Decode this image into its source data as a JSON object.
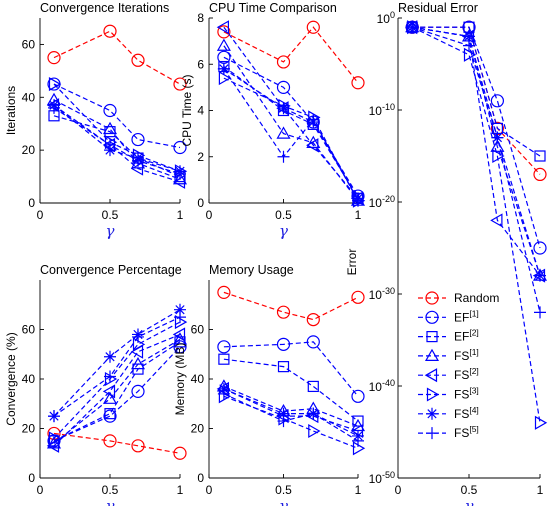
{
  "figure": {
    "gamma_symbol": "γ",
    "colors": {
      "random": "#ff0000",
      "methods": "#0000ff",
      "axis": "#000000"
    }
  },
  "legend": {
    "entries": [
      {
        "base": "Random",
        "sup": "",
        "marker": "circle",
        "color": "#ff0000"
      },
      {
        "base": "EF",
        "sup": "[1]",
        "marker": "circle",
        "color": "#0000ff"
      },
      {
        "base": "EF",
        "sup": "[2]",
        "marker": "square",
        "color": "#0000ff"
      },
      {
        "base": "FS",
        "sup": "[1]",
        "marker": "triangle-up",
        "color": "#0000ff"
      },
      {
        "base": "FS",
        "sup": "[2]",
        "marker": "triangle-left",
        "color": "#0000ff"
      },
      {
        "base": "FS",
        "sup": "[3]",
        "marker": "triangle-right",
        "color": "#0000ff"
      },
      {
        "base": "FS",
        "sup": "[4]",
        "marker": "asterisk",
        "color": "#0000ff"
      },
      {
        "base": "FS",
        "sup": "[5]",
        "marker": "plus",
        "color": "#0000ff"
      }
    ]
  },
  "chart_data": [
    {
      "type": "line",
      "title": "Convergence Iterations",
      "xlabel": "γ",
      "ylabel": "Iterations",
      "xlim": [
        0,
        1
      ],
      "ylim": [
        0,
        70
      ],
      "grid": false,
      "xticks": [
        "0",
        "0.5",
        "1"
      ],
      "yticks": [
        "0",
        "20",
        "40",
        "60"
      ],
      "x": [
        0.1,
        0.5,
        0.7,
        1.0
      ],
      "series": [
        {
          "name": "Random",
          "values": [
            55,
            65,
            54,
            45
          ]
        },
        {
          "name": "EF[1]",
          "values": [
            45,
            35,
            24,
            21
          ]
        },
        {
          "name": "EF[2]",
          "values": [
            33,
            27,
            17,
            10
          ]
        },
        {
          "name": "FS[1]",
          "values": [
            39,
            28,
            15,
            9
          ]
        },
        {
          "name": "FS[2]",
          "values": [
            37,
            22,
            13,
            8
          ]
        },
        {
          "name": "FS[3]",
          "values": [
            45,
            23,
            18,
            12
          ]
        },
        {
          "name": "FS[4]",
          "values": [
            37,
            20,
            17,
            12
          ]
        },
        {
          "name": "FS[5]",
          "values": [
            36,
            22,
            16,
            11
          ]
        }
      ]
    },
    {
      "type": "line",
      "title": "CPU Time Comparison",
      "xlabel": "γ",
      "ylabel": "CPU Time (s)",
      "xlim": [
        0,
        1
      ],
      "ylim": [
        0,
        8
      ],
      "grid": false,
      "xticks": [
        "0",
        "0.5",
        "1"
      ],
      "yticks": [
        "0",
        "2",
        "4",
        "6",
        "8"
      ],
      "x": [
        0.1,
        0.5,
        0.7,
        1.0
      ],
      "series": [
        {
          "name": "Random",
          "values": [
            7.4,
            6.1,
            7.6,
            5.2
          ]
        },
        {
          "name": "EF[1]",
          "values": [
            6.3,
            5.0,
            3.5,
            0.3
          ]
        },
        {
          "name": "EF[2]",
          "values": [
            5.9,
            4.0,
            3.4,
            0.2
          ]
        },
        {
          "name": "FS[1]",
          "values": [
            6.8,
            3.0,
            2.6,
            0.1
          ]
        },
        {
          "name": "FS[2]",
          "values": [
            7.6,
            4.1,
            2.5,
            0.2
          ]
        },
        {
          "name": "FS[3]",
          "values": [
            5.4,
            4.2,
            3.7,
            0.1
          ]
        },
        {
          "name": "FS[4]",
          "values": [
            5.8,
            4.1,
            3.5,
            0.2
          ]
        },
        {
          "name": "FS[5]",
          "values": [
            5.8,
            2.0,
            3.6,
            0.1
          ]
        }
      ]
    },
    {
      "type": "line",
      "title": "Residual Error",
      "xlabel": "γ",
      "ylabel": "Error",
      "xlim": [
        0,
        1
      ],
      "ylim": [
        -50,
        0
      ],
      "yscale": "log",
      "grid": false,
      "xticks": [
        "0",
        "0.5",
        "1"
      ],
      "yticks": [
        "10^0",
        "10^-10",
        "10^-20",
        "10^-30",
        "10^-40",
        "10^-50"
      ],
      "x": [
        0.1,
        0.5,
        0.7,
        1.0
      ],
      "series": [
        {
          "name": "Random",
          "values": [
            0.1,
            0.1,
            1e-12,
            1e-17
          ]
        },
        {
          "name": "EF[1]",
          "values": [
            0.1,
            0.1,
            1e-09,
            1e-25
          ]
        },
        {
          "name": "EF[2]",
          "values": [
            0.1,
            0.1,
            1e-12,
            1e-15
          ]
        },
        {
          "name": "FS[1]",
          "values": [
            0.1,
            0.01,
            1e-14,
            1e-28
          ]
        },
        {
          "name": "FS[2]",
          "values": [
            0.1,
            0.01,
            1e-22,
            1e-28
          ]
        },
        {
          "name": "FS[3]",
          "values": [
            0.1,
            0.0001,
            1e-15,
            1e-44
          ]
        },
        {
          "name": "FS[4]",
          "values": [
            0.1,
            0.01,
            1e-13,
            1e-28
          ]
        },
        {
          "name": "FS[5]",
          "values": [
            0.1,
            0.001,
            1e-13,
            1e-32
          ]
        }
      ]
    },
    {
      "type": "line",
      "title": "Convergence Percentage",
      "xlabel": "γ",
      "ylabel": "Convergence (%)",
      "xlim": [
        0,
        1
      ],
      "ylim": [
        0,
        80
      ],
      "grid": false,
      "xticks": [
        "0",
        "0.5",
        "1"
      ],
      "yticks": [
        "0",
        "20",
        "40",
        "60"
      ],
      "x": [
        0.1,
        0.5,
        0.7,
        1.0
      ],
      "series": [
        {
          "name": "Random",
          "values": [
            18,
            15,
            13,
            10
          ]
        },
        {
          "name": "EF[1]",
          "values": [
            15,
            25,
            35,
            53
          ]
        },
        {
          "name": "EF[2]",
          "values": [
            15,
            26,
            44,
            55
          ]
        },
        {
          "name": "FS[1]",
          "values": [
            14,
            32,
            46,
            56
          ]
        },
        {
          "name": "FS[2]",
          "values": [
            13,
            35,
            51,
            58
          ]
        },
        {
          "name": "FS[3]",
          "values": [
            16,
            40,
            54,
            63
          ]
        },
        {
          "name": "FS[4]",
          "values": [
            25,
            49,
            58,
            68
          ]
        },
        {
          "name": "FS[5]",
          "values": [
            25,
            41,
            57,
            65
          ]
        }
      ]
    },
    {
      "type": "line",
      "title": "Memory Usage",
      "xlabel": "γ",
      "ylabel": "Memory (MB)",
      "xlim": [
        0,
        1
      ],
      "ylim": [
        0,
        80
      ],
      "grid": false,
      "xticks": [
        "0",
        "0.5",
        "1"
      ],
      "yticks": [
        "0",
        "20",
        "40",
        "60"
      ],
      "x": [
        0.1,
        0.5,
        0.7,
        1.0
      ],
      "series": [
        {
          "name": "Random",
          "values": [
            75,
            67,
            64,
            73
          ]
        },
        {
          "name": "EF[1]",
          "values": [
            53,
            54,
            55,
            33
          ]
        },
        {
          "name": "EF[2]",
          "values": [
            48,
            45,
            37,
            23
          ]
        },
        {
          "name": "FS[1]",
          "values": [
            37,
            27,
            28,
            21
          ]
        },
        {
          "name": "FS[2]",
          "values": [
            36,
            25,
            25,
            19
          ]
        },
        {
          "name": "FS[3]",
          "values": [
            33,
            24,
            19,
            12
          ]
        },
        {
          "name": "FS[4]",
          "values": [
            36,
            26,
            26,
            17
          ]
        },
        {
          "name": "FS[5]",
          "values": [
            34,
            23,
            26,
            15
          ]
        }
      ]
    }
  ]
}
